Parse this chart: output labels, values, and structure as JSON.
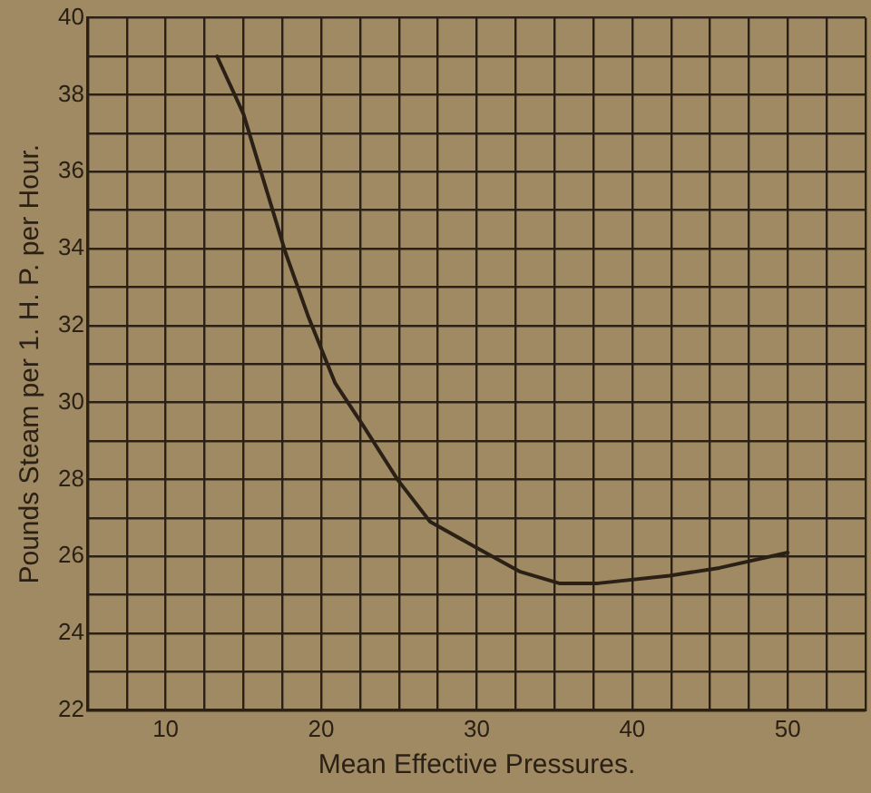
{
  "chart_data": {
    "type": "line",
    "xlabel": "Mean Effective Pressures.",
    "ylabel": "Pounds Steam per 1. H. P. per Hour.",
    "x": [
      13.3,
      15.0,
      17.7,
      19.2,
      20.9,
      22.7,
      24.9,
      27.0,
      30.1,
      32.8,
      35.3,
      37.8,
      42.4,
      45.6,
      50.0
    ],
    "series": [
      {
        "color": "#2a2015",
        "values": [
          39.0,
          37.5,
          33.9,
          32.2,
          30.5,
          29.4,
          28.0,
          26.9,
          26.2,
          25.6,
          25.3,
          25.3,
          25.5,
          25.7,
          26.1
        ]
      }
    ],
    "xlim": [
      5,
      55
    ],
    "xticks": [
      {
        "value": 5,
        "label": null
      },
      {
        "value": 7.5,
        "label": null
      },
      10,
      {
        "value": 12.5,
        "label": null
      },
      {
        "value": 15,
        "label": null
      },
      {
        "value": 17.5,
        "label": null
      },
      20,
      {
        "value": 22.5,
        "label": null
      },
      {
        "value": 25,
        "label": null
      },
      {
        "value": 27.5,
        "label": null
      },
      30,
      {
        "value": 32.5,
        "label": null
      },
      {
        "value": 35,
        "label": null
      },
      {
        "value": 37.5,
        "label": null
      },
      40,
      {
        "value": 42.5,
        "label": null
      },
      {
        "value": 45,
        "label": null
      },
      {
        "value": 47.5,
        "label": null
      },
      50,
      {
        "value": 52.5,
        "label": null
      },
      {
        "value": 55,
        "label": null
      }
    ],
    "ylim": [
      22,
      40
    ],
    "yticks": [
      22,
      {
        "value": 23,
        "label": null
      },
      24,
      {
        "value": 25,
        "label": null
      },
      26,
      {
        "value": 27,
        "label": null
      },
      28,
      {
        "value": 29,
        "label": null
      },
      30,
      {
        "value": 31,
        "label": null
      },
      32,
      {
        "value": 33,
        "label": null
      },
      34,
      {
        "value": 35,
        "label": null
      },
      36,
      {
        "value": 37,
        "label": null
      },
      38,
      {
        "value": 39,
        "label": null
      },
      40
    ],
    "grid": true,
    "legend": false,
    "marker": "none",
    "line_style": "solid"
  }
}
